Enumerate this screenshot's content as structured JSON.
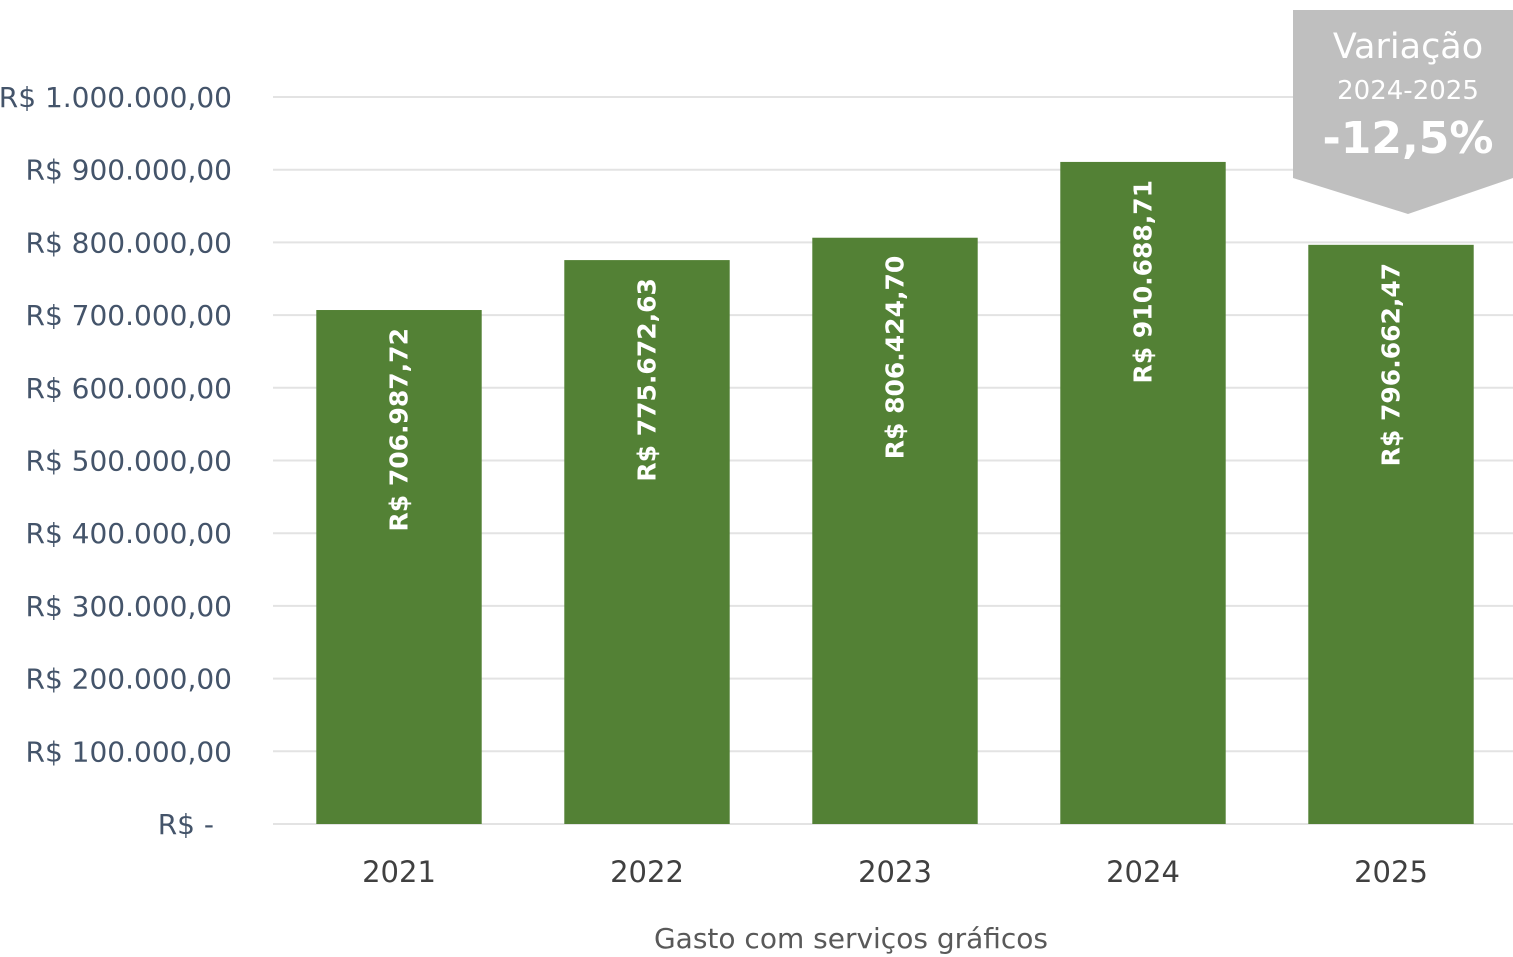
{
  "chart_data": {
    "type": "bar",
    "categories": [
      "2021",
      "2022",
      "2023",
      "2024",
      "2025"
    ],
    "values": [
      706987.72,
      775672.63,
      806424.7,
      910688.71,
      796662.47
    ],
    "data_labels": [
      "R$ 706.987,72",
      "R$ 775.672,63",
      "R$ 806.424,70",
      "R$ 910.688,71",
      "R$ 796.662,47"
    ],
    "ylim": [
      0,
      1000000
    ],
    "yticks": [
      0,
      100000,
      200000,
      300000,
      400000,
      500000,
      600000,
      700000,
      800000,
      900000,
      1000000
    ],
    "ytick_labels": [
      "R$ -",
      "R$ 100.000,00",
      "R$ 200.000,00",
      "R$ 300.000,00",
      "R$ 400.000,00",
      "R$ 500.000,00",
      "R$ 600.000,00",
      "R$ 700.000,00",
      "R$ 800.000,00",
      "R$ 900.000,00",
      "R$ 1.000.000,00"
    ],
    "xlabel": "Gasto com serviços gráficos",
    "grid": true,
    "bar_color": "#538135",
    "annotation": {
      "title": "Variação",
      "period": "2024-2025",
      "value": "-12,5%",
      "color": "#bfbfbf"
    }
  }
}
